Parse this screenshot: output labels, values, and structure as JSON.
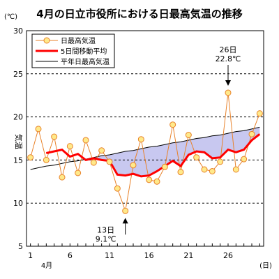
{
  "chart_data": {
    "type": "line",
    "title": "4月の日立市役所における日最高気温の推移",
    "yunit": "(℃)",
    "ylabel": "気温",
    "xunit": "(日)",
    "month_label": "4月",
    "ylim": [
      5,
      30
    ],
    "yticks": [
      5,
      10,
      15,
      20,
      25,
      30
    ],
    "xlim": [
      1,
      30
    ],
    "xticks": [
      1,
      6,
      11,
      16,
      21,
      26
    ],
    "grid": "dashed horizontal at 15, 20, 25",
    "legend_position": "top-left",
    "days": [
      1,
      2,
      3,
      4,
      5,
      6,
      7,
      8,
      9,
      10,
      11,
      12,
      13,
      14,
      15,
      16,
      17,
      18,
      19,
      20,
      21,
      22,
      23,
      24,
      25,
      26,
      27,
      28,
      29,
      30
    ],
    "series": [
      {
        "name": "日最高気温",
        "color": "#e8822a",
        "marker_fill": "#ffe98a",
        "values": [
          15.3,
          18.6,
          15.0,
          17.7,
          13.0,
          16.6,
          13.5,
          17.3,
          14.7,
          16.1,
          14.8,
          11.7,
          9.1,
          14.4,
          17.4,
          12.7,
          12.5,
          14.2,
          19.1,
          13.6,
          17.9,
          15.3,
          13.9,
          13.7,
          14.8,
          22.8,
          13.9,
          15.1,
          18.0,
          20.4
        ]
      },
      {
        "name": "5日間移動平均",
        "color": "#ff0000",
        "values": [
          null,
          null,
          15.8,
          16.0,
          16.2,
          15.4,
          15.7,
          15.0,
          15.2,
          15.0,
          14.9,
          13.3,
          13.2,
          13.4,
          13.1,
          13.2,
          13.7,
          14.3,
          14.9,
          14.3,
          15.6,
          16.0,
          15.9,
          15.2,
          15.3,
          16.2,
          15.9,
          16.2,
          17.3,
          18.0
        ]
      },
      {
        "name": "平年日最高気温",
        "color": "#000000",
        "values": [
          13.9,
          14.1,
          14.3,
          14.4,
          14.6,
          14.8,
          14.9,
          15.1,
          15.3,
          15.5,
          15.6,
          15.8,
          16.0,
          16.1,
          16.3,
          16.5,
          16.6,
          16.8,
          17.0,
          17.1,
          17.3,
          17.5,
          17.6,
          17.8,
          17.9,
          18.1,
          18.3,
          18.4,
          18.6,
          18.8
        ]
      }
    ],
    "fill_between": {
      "upper": "平年日最高気温",
      "lower": "5日間移動平均",
      "color": "#c8c8f0"
    },
    "annotations": [
      {
        "day": 26,
        "line1": "26日",
        "line2": "22.8℃",
        "position": "above"
      },
      {
        "day": 13,
        "line1": "13日",
        "line2": "9.1℃",
        "position": "below"
      }
    ]
  }
}
